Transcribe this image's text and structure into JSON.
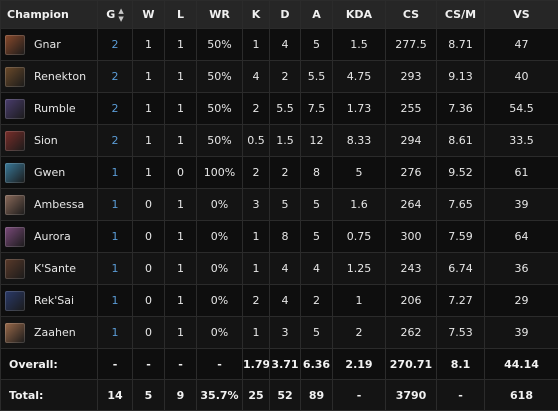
{
  "header": {
    "champion": "Champion",
    "games": "G",
    "wins": "W",
    "losses": "L",
    "winrate": "WR",
    "kills": "K",
    "deaths": "D",
    "assists": "A",
    "kda": "KDA",
    "cs": "CS",
    "cspm": "CS/M",
    "vs": "VS",
    "sort_icons": [
      "sort-updown-icon",
      "sort-down-icon"
    ]
  },
  "rows": [
    {
      "champion": "Gnar",
      "g": "2",
      "w": "1",
      "l": "1",
      "wr": "50%",
      "k": "1",
      "d": "4",
      "a": "5",
      "kda": "1.5",
      "cs": "277.5",
      "cspm": "8.71",
      "vs": "47",
      "avatar_color": "#8a4a2c"
    },
    {
      "champion": "Renekton",
      "g": "2",
      "w": "1",
      "l": "1",
      "wr": "50%",
      "k": "4",
      "d": "2",
      "a": "5.5",
      "kda": "4.75",
      "cs": "293",
      "cspm": "9.13",
      "vs": "40",
      "avatar_color": "#6b4a2a"
    },
    {
      "champion": "Rumble",
      "g": "2",
      "w": "1",
      "l": "1",
      "wr": "50%",
      "k": "2",
      "d": "5.5",
      "a": "7.5",
      "kda": "1.73",
      "cs": "255",
      "cspm": "7.36",
      "vs": "54.5",
      "avatar_color": "#4a3d6e"
    },
    {
      "champion": "Sion",
      "g": "2",
      "w": "1",
      "l": "1",
      "wr": "50%",
      "k": "0.5",
      "d": "1.5",
      "a": "12",
      "kda": "8.33",
      "cs": "294",
      "cspm": "8.61",
      "vs": "33.5",
      "avatar_color": "#7a2e2a"
    },
    {
      "champion": "Gwen",
      "g": "1",
      "w": "1",
      "l": "0",
      "wr": "100%",
      "k": "2",
      "d": "2",
      "a": "8",
      "kda": "5",
      "cs": "276",
      "cspm": "9.52",
      "vs": "61",
      "avatar_color": "#3a7a9a"
    },
    {
      "champion": "Ambessa",
      "g": "1",
      "w": "0",
      "l": "1",
      "wr": "0%",
      "k": "3",
      "d": "5",
      "a": "5",
      "kda": "1.6",
      "cs": "264",
      "cspm": "7.65",
      "vs": "39",
      "avatar_color": "#8a6a5a"
    },
    {
      "champion": "Aurora",
      "g": "1",
      "w": "0",
      "l": "1",
      "wr": "0%",
      "k": "1",
      "d": "8",
      "a": "5",
      "kda": "0.75",
      "cs": "300",
      "cspm": "7.59",
      "vs": "64",
      "avatar_color": "#7a4a7a"
    },
    {
      "champion": "K'Sante",
      "g": "1",
      "w": "0",
      "l": "1",
      "wr": "0%",
      "k": "1",
      "d": "4",
      "a": "4",
      "kda": "1.25",
      "cs": "243",
      "cspm": "6.74",
      "vs": "36",
      "avatar_color": "#5a3a2a"
    },
    {
      "champion": "Rek'Sai",
      "g": "1",
      "w": "0",
      "l": "1",
      "wr": "0%",
      "k": "2",
      "d": "4",
      "a": "2",
      "kda": "1",
      "cs": "206",
      "cspm": "7.27",
      "vs": "29",
      "avatar_color": "#2a3a6a"
    },
    {
      "champion": "Zaahen",
      "g": "1",
      "w": "0",
      "l": "1",
      "wr": "0%",
      "k": "1",
      "d": "3",
      "a": "5",
      "kda": "2",
      "cs": "262",
      "cspm": "7.53",
      "vs": "39",
      "avatar_color": "#9a6a4a"
    }
  ],
  "overall": {
    "label": "Overall:",
    "g": "-",
    "w": "-",
    "l": "-",
    "wr": "-",
    "k": "1.79",
    "d": "3.71",
    "a": "6.36",
    "kda": "2.19",
    "cs": "270.71",
    "cspm": "8.1",
    "vs": "44.14"
  },
  "total": {
    "label": "Total:",
    "g": "14",
    "w": "5",
    "l": "9",
    "wr": "35.7%",
    "k": "25",
    "d": "52",
    "a": "89",
    "kda": "-",
    "cs": "3790",
    "cspm": "-",
    "vs": "618"
  },
  "colors": {
    "games_link": "#5a9bd5",
    "header_bg": "#262626",
    "row_bg": "#0e0e0e"
  }
}
